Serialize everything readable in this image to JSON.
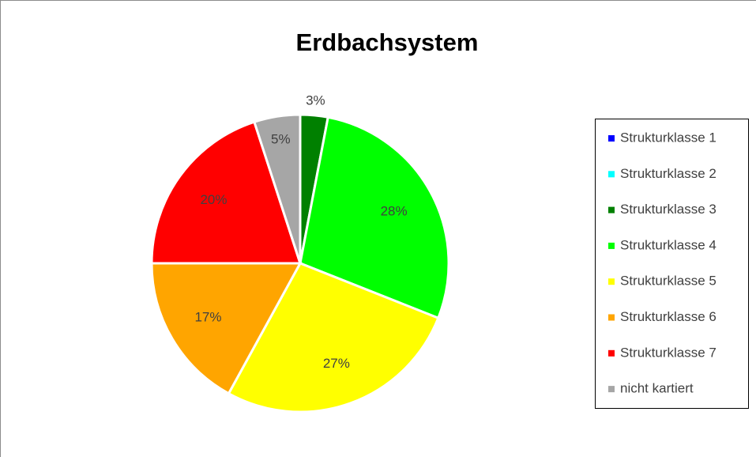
{
  "chart_data": {
    "type": "pie",
    "title": "Erdbachsystem",
    "categories": [
      "Strukturklasse 1",
      "Strukturklasse 2",
      "Strukturklasse 3",
      "Strukturklasse 4",
      "Strukturklasse 5",
      "Strukturklasse 6",
      "Strukturklasse 7",
      "nicht kartiert"
    ],
    "values": [
      0,
      0,
      3,
      28,
      27,
      17,
      20,
      5
    ],
    "value_labels": [
      null,
      null,
      "3%",
      "28%",
      "27%",
      "17%",
      "20%",
      "5%"
    ],
    "colors": [
      "#0000ff",
      "#00ffff",
      "#008000",
      "#00ff00",
      "#ffff00",
      "#ffa500",
      "#ff0000",
      "#a6a6a6"
    ],
    "legend": "right"
  }
}
